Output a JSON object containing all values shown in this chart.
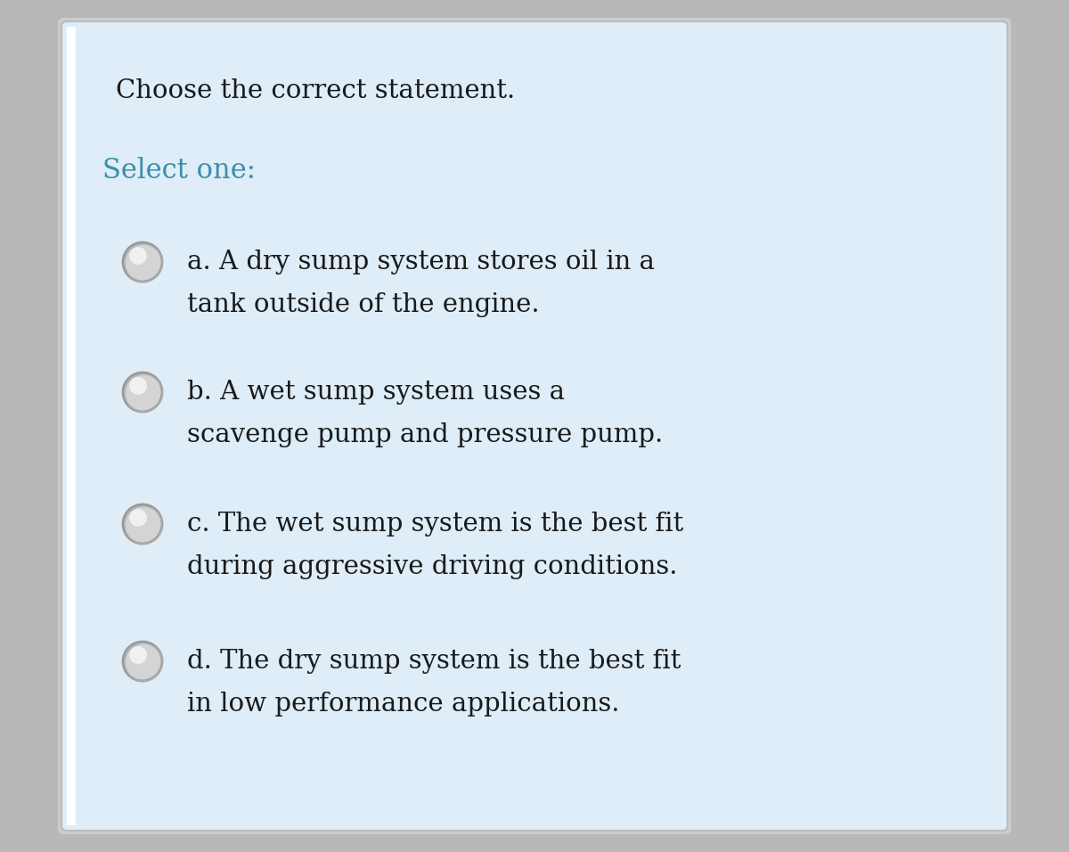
{
  "bg_outer": "#b8b8b8",
  "bg_card": "#deedf8",
  "title": "Choose the correct statement.",
  "title_color": "#1a1a1a",
  "title_fontsize": 21,
  "select_label": "Select one:",
  "select_color": "#3d8fa8",
  "select_fontsize": 22,
  "options": [
    {
      "line1": "a. A dry sump system stores oil in a",
      "line2": "tank outside of the engine."
    },
    {
      "line1": "b. A wet sump system uses a",
      "line2": "scavenge pump and pressure pump."
    },
    {
      "line1": "c. The wet sump system is the best fit",
      "line2": "during aggressive driving conditions."
    },
    {
      "line1": "d. The dry sump system is the best fit",
      "line2": "in low performance applications."
    }
  ],
  "option_fontsize": 21,
  "option_color": "#1a1a1a"
}
